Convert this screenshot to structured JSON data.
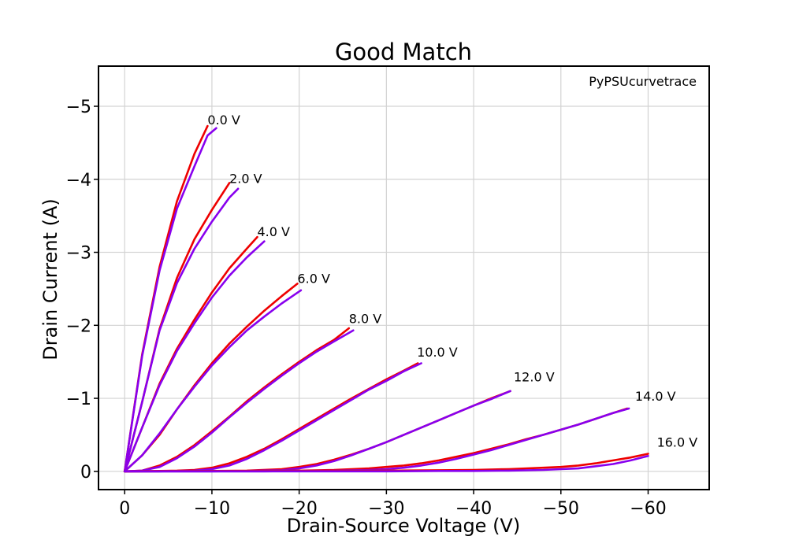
{
  "chart_data": {
    "type": "line",
    "title": "Good Match",
    "xlabel": "Drain-Source Voltage (V)",
    "ylabel": "Drain Current (A)",
    "xlim": [
      3,
      -67
    ],
    "ylim": [
      0.25,
      -5.55
    ],
    "x_ticks": [
      0,
      -10,
      -20,
      -30,
      -40,
      -50,
      -60
    ],
    "x_tick_labels": [
      "0",
      "−10",
      "−20",
      "−30",
      "−40",
      "−50",
      "−60"
    ],
    "y_ticks": [
      0,
      -1,
      -2,
      -3,
      -4,
      -5
    ],
    "y_tick_labels": [
      "0",
      "−1",
      "−2",
      "−3",
      "−4",
      "−5"
    ],
    "grid": true,
    "annotation": "PyPSUcurvetrace",
    "curve_labels": [
      {
        "text": "0.0 V",
        "x": -9.5,
        "y": -4.75
      },
      {
        "text": "2.0 V",
        "x": -12.0,
        "y": -3.95
      },
      {
        "text": "4.0 V",
        "x": -15.2,
        "y": -3.22
      },
      {
        "text": "6.0 V",
        "x": -19.8,
        "y": -2.58
      },
      {
        "text": "8.0 V",
        "x": -25.7,
        "y": -2.03
      },
      {
        "text": "10.0 V",
        "x": -33.5,
        "y": -1.57
      },
      {
        "text": "12.0 V",
        "x": -44.6,
        "y": -1.23
      },
      {
        "text": "14.0 V",
        "x": -58.5,
        "y": -0.97
      },
      {
        "text": "16.0 V",
        "x": -61.0,
        "y": -0.34
      }
    ],
    "series": [
      {
        "group": "0.0 V",
        "color": "#ee0000",
        "x": [
          0,
          -2,
          -4,
          -6,
          -8,
          -9.5
        ],
        "y": [
          0,
          -1.6,
          -2.8,
          -3.7,
          -4.35,
          -4.73
        ]
      },
      {
        "group": "0.0 V",
        "color": "#8800ee",
        "x": [
          0,
          -2,
          -4,
          -6,
          -8,
          -9.5,
          -10.5
        ],
        "y": [
          0,
          -1.58,
          -2.75,
          -3.6,
          -4.18,
          -4.6,
          -4.7
        ]
      },
      {
        "group": "2.0 V",
        "color": "#ee0000",
        "x": [
          0,
          -2,
          -4,
          -6,
          -8,
          -10,
          -12
        ],
        "y": [
          0,
          -0.95,
          -1.95,
          -2.65,
          -3.18,
          -3.58,
          -3.95
        ]
      },
      {
        "group": "2.0 V",
        "color": "#8800ee",
        "x": [
          0,
          -2,
          -4,
          -6,
          -8,
          -10,
          -12,
          -13
        ],
        "y": [
          0,
          -0.95,
          -1.93,
          -2.58,
          -3.05,
          -3.42,
          -3.75,
          -3.87
        ]
      },
      {
        "group": "4.0 V",
        "color": "#ee0000",
        "x": [
          0,
          -2,
          -4,
          -6,
          -8,
          -10,
          -12,
          -14,
          -15.2
        ],
        "y": [
          0,
          -0.6,
          -1.2,
          -1.68,
          -2.08,
          -2.45,
          -2.78,
          -3.05,
          -3.21
        ]
      },
      {
        "group": "4.0 V",
        "color": "#8800ee",
        "x": [
          0,
          -2,
          -4,
          -6,
          -8,
          -10,
          -12,
          -14,
          -16
        ],
        "y": [
          0,
          -0.6,
          -1.18,
          -1.65,
          -2.03,
          -2.38,
          -2.68,
          -2.93,
          -3.15
        ]
      },
      {
        "group": "6.0 V",
        "color": "#ee0000",
        "x": [
          0,
          -2,
          -4,
          -6,
          -8,
          -10,
          -12,
          -14,
          -16,
          -18,
          -19.8
        ],
        "y": [
          0,
          -0.22,
          -0.5,
          -0.85,
          -1.18,
          -1.48,
          -1.75,
          -1.98,
          -2.2,
          -2.4,
          -2.57
        ]
      },
      {
        "group": "6.0 V",
        "color": "#8800ee",
        "x": [
          0,
          -2,
          -4,
          -6,
          -8,
          -10,
          -12,
          -14,
          -16,
          -18,
          -20.2
        ],
        "y": [
          0,
          -0.22,
          -0.52,
          -0.85,
          -1.16,
          -1.45,
          -1.7,
          -1.93,
          -2.12,
          -2.3,
          -2.48
        ]
      },
      {
        "group": "8.0 V",
        "color": "#ee0000",
        "x": [
          0,
          -2,
          -4,
          -6,
          -8,
          -10,
          -12,
          -14,
          -16,
          -18,
          -20,
          -22,
          -24,
          -25.7
        ],
        "y": [
          0,
          -0.01,
          -0.08,
          -0.2,
          -0.36,
          -0.55,
          -0.75,
          -0.96,
          -1.15,
          -1.33,
          -1.5,
          -1.66,
          -1.8,
          -1.96
        ]
      },
      {
        "group": "8.0 V",
        "color": "#8800ee",
        "x": [
          0,
          -2,
          -4,
          -6,
          -8,
          -10,
          -12,
          -14,
          -16,
          -18,
          -20,
          -22,
          -24,
          -26.2
        ],
        "y": [
          0,
          -0.01,
          -0.06,
          -0.18,
          -0.34,
          -0.53,
          -0.74,
          -0.94,
          -1.13,
          -1.31,
          -1.48,
          -1.64,
          -1.78,
          -1.93
        ]
      },
      {
        "group": "10.0 V",
        "color": "#ee0000",
        "x": [
          0,
          -4,
          -6,
          -8,
          -10,
          -12,
          -14,
          -16,
          -18,
          -20,
          -22,
          -24,
          -26,
          -28,
          -30,
          -32,
          -33.6
        ],
        "y": [
          0,
          -0.005,
          -0.01,
          -0.02,
          -0.05,
          -0.11,
          -0.2,
          -0.31,
          -0.44,
          -0.58,
          -0.72,
          -0.86,
          -1.0,
          -1.13,
          -1.26,
          -1.38,
          -1.48
        ]
      },
      {
        "group": "10.0 V",
        "color": "#8800ee",
        "x": [
          0,
          -4,
          -6,
          -8,
          -10,
          -12,
          -14,
          -16,
          -18,
          -20,
          -22,
          -24,
          -26,
          -28,
          -30,
          -32,
          -34
        ],
        "y": [
          0,
          0,
          -0.005,
          -0.01,
          -0.03,
          -0.08,
          -0.17,
          -0.29,
          -0.42,
          -0.56,
          -0.7,
          -0.84,
          -0.98,
          -1.12,
          -1.24,
          -1.37,
          -1.48
        ]
      },
      {
        "group": "12.0 V",
        "color": "#ee0000",
        "x": [
          0,
          -10,
          -14,
          -18,
          -20,
          -22,
          -24,
          -26,
          -28,
          -30,
          -32,
          -34,
          -36,
          -38,
          -40,
          -42,
          -44.2
        ],
        "y": [
          0,
          -0.005,
          -0.01,
          -0.03,
          -0.06,
          -0.1,
          -0.16,
          -0.23,
          -0.31,
          -0.4,
          -0.5,
          -0.6,
          -0.7,
          -0.8,
          -0.9,
          -1.0,
          -1.1
        ]
      },
      {
        "group": "12.0 V",
        "color": "#8800ee",
        "x": [
          0,
          -10,
          -14,
          -18,
          -20,
          -22,
          -24,
          -26,
          -28,
          -30,
          -32,
          -34,
          -36,
          -38,
          -40,
          -42,
          -44.2
        ],
        "y": [
          0,
          0,
          -0.005,
          -0.015,
          -0.04,
          -0.08,
          -0.14,
          -0.22,
          -0.31,
          -0.4,
          -0.5,
          -0.6,
          -0.7,
          -0.8,
          -0.9,
          -0.99,
          -1.1
        ]
      },
      {
        "group": "14.0 V",
        "color": "#ee0000",
        "x": [
          0,
          -16,
          -20,
          -24,
          -28,
          -30,
          -32,
          -34,
          -36,
          -38,
          -40,
          -42,
          -44,
          -46,
          -48,
          -50,
          -52,
          -54,
          -56,
          -57.6
        ],
        "y": [
          0,
          -0.005,
          -0.01,
          -0.02,
          -0.04,
          -0.06,
          -0.08,
          -0.11,
          -0.15,
          -0.2,
          -0.25,
          -0.31,
          -0.37,
          -0.44,
          -0.5,
          -0.57,
          -0.64,
          -0.72,
          -0.8,
          -0.86
        ]
      },
      {
        "group": "14.0 V",
        "color": "#8800ee",
        "x": [
          0,
          -16,
          -20,
          -24,
          -28,
          -30,
          -32,
          -34,
          -36,
          -38,
          -40,
          -42,
          -44,
          -46,
          -48,
          -50,
          -52,
          -54,
          -56,
          -57.8
        ],
        "y": [
          0,
          0,
          -0.005,
          -0.01,
          -0.02,
          -0.03,
          -0.05,
          -0.08,
          -0.12,
          -0.17,
          -0.23,
          -0.29,
          -0.36,
          -0.43,
          -0.5,
          -0.57,
          -0.64,
          -0.72,
          -0.8,
          -0.86
        ]
      },
      {
        "group": "16.0 V",
        "color": "#ee0000",
        "x": [
          0,
          -20,
          -30,
          -36,
          -40,
          -44,
          -48,
          -50,
          -52,
          -54,
          -56,
          -58,
          -60
        ],
        "y": [
          0,
          -0.005,
          -0.01,
          -0.015,
          -0.02,
          -0.03,
          -0.05,
          -0.06,
          -0.08,
          -0.11,
          -0.15,
          -0.19,
          -0.24
        ]
      },
      {
        "group": "16.0 V",
        "color": "#8800ee",
        "x": [
          0,
          -20,
          -30,
          -36,
          -40,
          -44,
          -48,
          -50,
          -52,
          -54,
          -56,
          -58,
          -60
        ],
        "y": [
          0,
          0,
          0,
          -0.005,
          -0.005,
          -0.01,
          -0.02,
          -0.03,
          -0.04,
          -0.07,
          -0.1,
          -0.15,
          -0.21
        ]
      }
    ]
  }
}
